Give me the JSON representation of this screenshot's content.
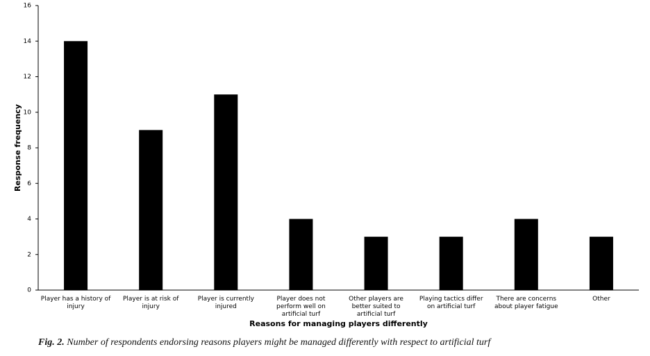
{
  "chart_data": {
    "type": "bar",
    "x_label": "Reasons for managing players differently",
    "y_label": "Response frequency",
    "caption_label": "Fig. 2.",
    "caption": "Number of respondents endorsing reasons players might be managed differently with respect to artificial turf",
    "categories": [
      "Player has a history of injury",
      "Player is at risk of injury",
      "Player is currently injured",
      "Player does not perform well on artificial turf",
      "Other players are better suited to artificial turf",
      "Playing tactics differ on artificial turf",
      "There are concerns about player fatigue",
      "Other"
    ],
    "values": [
      14,
      9,
      11,
      4,
      3,
      3,
      4,
      3
    ],
    "color": "#000000",
    "ylim": [
      0,
      16
    ],
    "yticks": [
      0,
      2,
      4,
      6,
      8,
      10,
      12,
      14,
      16
    ],
    "grid": false
  }
}
